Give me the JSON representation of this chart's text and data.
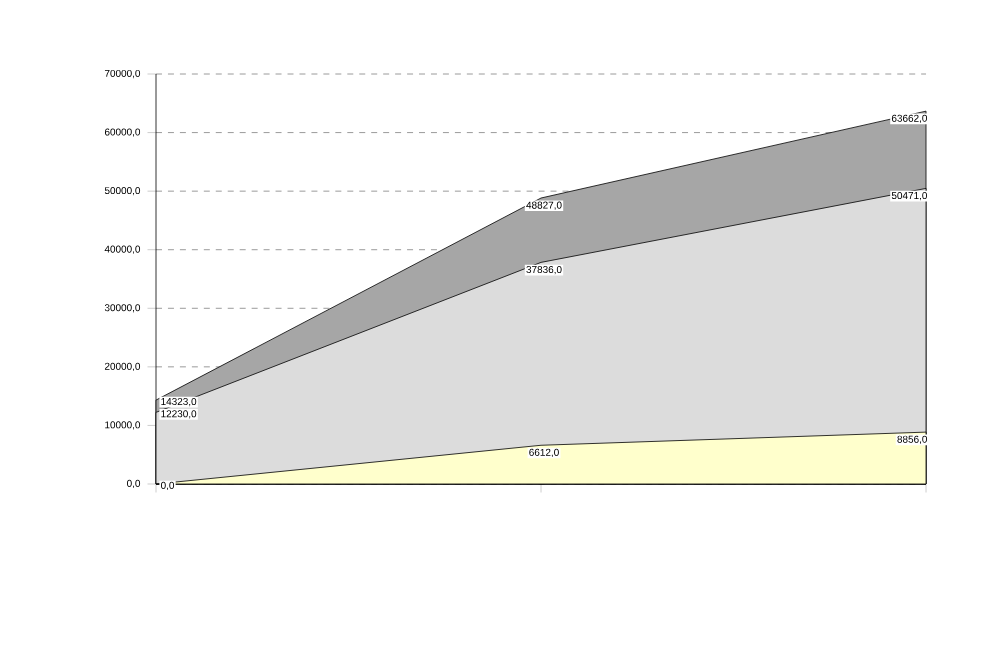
{
  "chart_data": {
    "type": "area",
    "categories": [
      null,
      null,
      null
    ],
    "series": [
      {
        "color": "#a6a6a6",
        "values": [
          14323,
          48827,
          63662
        ],
        "value_labels": [
          "14323,0",
          "48827,0",
          "63662,0"
        ]
      },
      {
        "color": "#dcdcdc",
        "values": [
          12230,
          37836,
          50471
        ],
        "value_labels": [
          "12230,0",
          "37836,0",
          "50471,0"
        ]
      },
      {
        "color": "#ffffcc",
        "values": [
          0,
          6612,
          8856
        ],
        "value_labels": [
          "0,0",
          "6612,0",
          "8856,0"
        ]
      }
    ],
    "ylim": [
      0,
      70000
    ],
    "yticks": [
      {
        "value": 0,
        "label": "0,0"
      },
      {
        "value": 10000,
        "label": "10000,0"
      },
      {
        "value": 20000,
        "label": "20000,0"
      },
      {
        "value": 30000,
        "label": "30000,0"
      },
      {
        "value": 40000,
        "label": "40000,0"
      },
      {
        "value": 50000,
        "label": "50000,0"
      },
      {
        "value": 60000,
        "label": "60000,0"
      },
      {
        "value": 70000,
        "label": "70000,0"
      }
    ],
    "grid": "y"
  }
}
